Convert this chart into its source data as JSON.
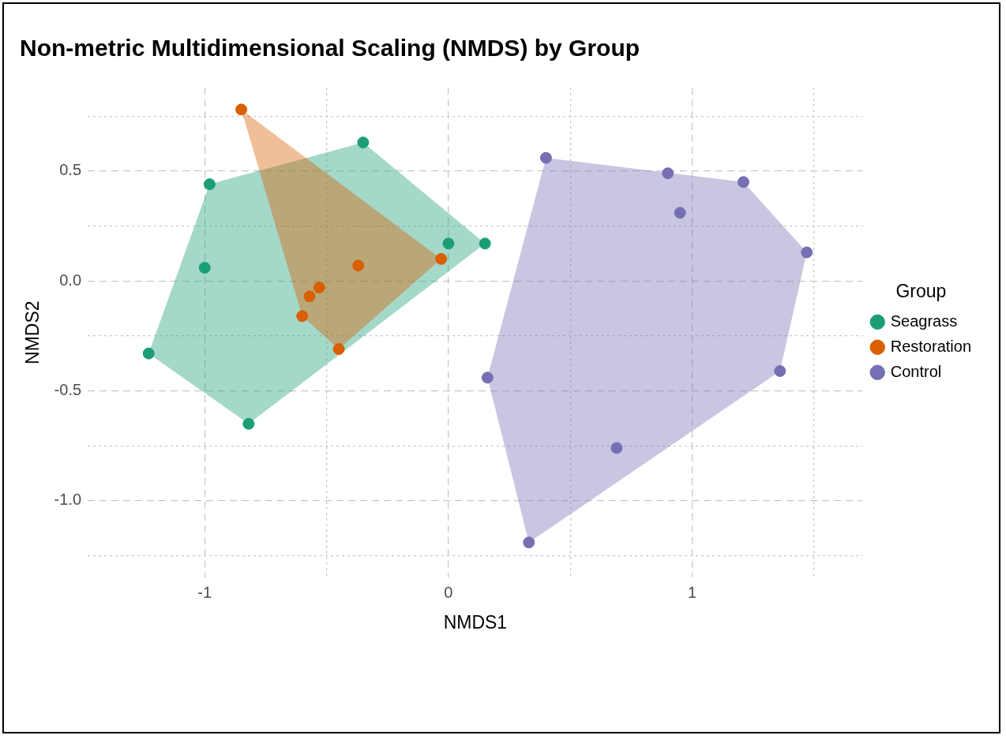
{
  "chart_data": {
    "type": "scatter",
    "title": "Non-metric Multidimensional Scaling (NMDS) by Group",
    "xlabel": "NMDS1",
    "ylabel": "NMDS2",
    "legend_title": "Group",
    "legend": "right",
    "grid": true,
    "marker": "circle",
    "xlim": [
      -1.48,
      1.7
    ],
    "xticks": [
      {
        "value": -1,
        "label": "-1"
      },
      {
        "value": -0.5,
        "label": null
      },
      0,
      {
        "value": 0.5,
        "label": null
      },
      1,
      {
        "value": 1.5,
        "label": null
      }
    ],
    "ylim": [
      -1.35,
      0.88
    ],
    "yticks": [
      {
        "value": -1.25,
        "label": null
      },
      {
        "value": -1,
        "label": "-1.0"
      },
      {
        "value": -0.75,
        "label": null
      },
      {
        "value": -0.5,
        "label": "-0.5"
      },
      {
        "value": -0.25,
        "label": null
      },
      {
        "value": 0,
        "label": "0.0"
      },
      {
        "value": 0.25,
        "label": null
      },
      {
        "value": 0.5,
        "label": "0.5"
      },
      {
        "value": 0.75,
        "label": null
      }
    ],
    "series": [
      {
        "type": "area",
        "marker": "none",
        "color": "#1b9e77",
        "x": [
          -1.23,
          -0.98,
          -0.35,
          0.15,
          -0.82
        ],
        "values": [
          -0.33,
          0.44,
          0.63,
          0.17,
          -0.65
        ]
      },
      {
        "type": "area",
        "marker": "none",
        "color": "#d95f02",
        "x": [
          -0.85,
          -0.03,
          -0.45,
          -0.6
        ],
        "values": [
          0.78,
          0.1,
          -0.31,
          -0.16
        ]
      },
      {
        "type": "area",
        "marker": "none",
        "color": "#7570b3",
        "x": [
          0.4,
          1.21,
          1.47,
          1.36,
          0.33,
          0.16
        ],
        "values": [
          0.56,
          0.45,
          0.13,
          -0.41,
          -1.19,
          -0.44
        ]
      },
      {
        "name": "Seagrass",
        "color": "#1b9e77",
        "x": [
          -0.98,
          -0.35,
          -1.0,
          0.0,
          0.15,
          -1.23,
          -0.82
        ],
        "values": [
          0.44,
          0.63,
          0.06,
          0.17,
          0.17,
          -0.33,
          -0.65
        ]
      },
      {
        "name": "Restoration",
        "color": "#d95f02",
        "x": [
          -0.85,
          -0.37,
          -0.03,
          -0.53,
          -0.57,
          -0.6,
          -0.45
        ],
        "values": [
          0.78,
          0.07,
          0.1,
          -0.03,
          -0.07,
          -0.16,
          -0.31
        ]
      },
      {
        "name": "Control",
        "color": "#7570b3",
        "x": [
          0.4,
          0.9,
          1.21,
          0.95,
          1.47,
          1.36,
          0.16,
          0.69,
          0.33
        ],
        "values": [
          0.56,
          0.49,
          0.45,
          0.31,
          0.13,
          -0.41,
          -0.44,
          -0.76,
          -1.19
        ]
      }
    ]
  }
}
